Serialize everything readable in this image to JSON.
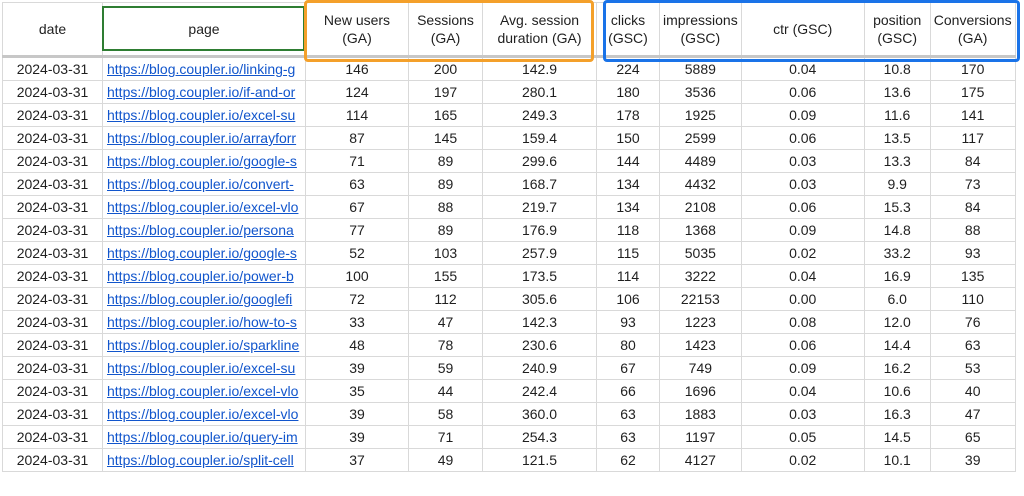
{
  "headers": [
    {
      "key": "date",
      "label": "date"
    },
    {
      "key": "page",
      "label": "page"
    },
    {
      "key": "new_users",
      "label": "New users (GA)"
    },
    {
      "key": "sessions",
      "label": "Sessions (GA)"
    },
    {
      "key": "avg_session",
      "label": "Avg. session duration (GA)"
    },
    {
      "key": "clicks",
      "label": "clicks (GSC)"
    },
    {
      "key": "impressions",
      "label": "impressions (GSC)"
    },
    {
      "key": "ctr",
      "label": "ctr (GSC)"
    },
    {
      "key": "position",
      "label": "position (GSC)"
    },
    {
      "key": "conversions",
      "label": "Conversions (GA)"
    }
  ],
  "rows": [
    [
      "2024-03-31",
      "https://blog.coupler.io/linking-g",
      "146",
      "200",
      "142.9",
      "224",
      "5889",
      "0.04",
      "10.8",
      "170"
    ],
    [
      "2024-03-31",
      "https://blog.coupler.io/if-and-or",
      "124",
      "197",
      "280.1",
      "180",
      "3536",
      "0.06",
      "13.6",
      "175"
    ],
    [
      "2024-03-31",
      "https://blog.coupler.io/excel-su",
      "114",
      "165",
      "249.3",
      "178",
      "1925",
      "0.09",
      "11.6",
      "141"
    ],
    [
      "2024-03-31",
      "https://blog.coupler.io/arrayforr",
      "87",
      "145",
      "159.4",
      "150",
      "2599",
      "0.06",
      "13.5",
      "117"
    ],
    [
      "2024-03-31",
      "https://blog.coupler.io/google-s",
      "71",
      "89",
      "299.6",
      "144",
      "4489",
      "0.03",
      "13.3",
      "84"
    ],
    [
      "2024-03-31",
      "https://blog.coupler.io/convert-",
      "63",
      "89",
      "168.7",
      "134",
      "4432",
      "0.03",
      "9.9",
      "73"
    ],
    [
      "2024-03-31",
      "https://blog.coupler.io/excel-vlo",
      "67",
      "88",
      "219.7",
      "134",
      "2108",
      "0.06",
      "15.3",
      "84"
    ],
    [
      "2024-03-31",
      "https://blog.coupler.io/persona",
      "77",
      "89",
      "176.9",
      "118",
      "1368",
      "0.09",
      "14.8",
      "88"
    ],
    [
      "2024-03-31",
      "https://blog.coupler.io/google-s",
      "52",
      "103",
      "257.9",
      "115",
      "5035",
      "0.02",
      "33.2",
      "93"
    ],
    [
      "2024-03-31",
      "https://blog.coupler.io/power-b",
      "100",
      "155",
      "173.5",
      "114",
      "3222",
      "0.04",
      "16.9",
      "135"
    ],
    [
      "2024-03-31",
      "https://blog.coupler.io/googlefi",
      "72",
      "112",
      "305.6",
      "106",
      "22153",
      "0.00",
      "6.0",
      "110"
    ],
    [
      "2024-03-31",
      "https://blog.coupler.io/how-to-s",
      "33",
      "47",
      "142.3",
      "93",
      "1223",
      "0.08",
      "12.0",
      "76"
    ],
    [
      "2024-03-31",
      "https://blog.coupler.io/sparkline",
      "48",
      "78",
      "230.6",
      "80",
      "1423",
      "0.06",
      "14.4",
      "63"
    ],
    [
      "2024-03-31",
      "https://blog.coupler.io/excel-su",
      "39",
      "59",
      "240.9",
      "67",
      "749",
      "0.09",
      "16.2",
      "53"
    ],
    [
      "2024-03-31",
      "https://blog.coupler.io/excel-vlo",
      "35",
      "44",
      "242.4",
      "66",
      "1696",
      "0.04",
      "10.6",
      "40"
    ],
    [
      "2024-03-31",
      "https://blog.coupler.io/excel-vlo",
      "39",
      "58",
      "360.0",
      "63",
      "1883",
      "0.03",
      "16.3",
      "47"
    ],
    [
      "2024-03-31",
      "https://blog.coupler.io/query-im",
      "39",
      "71",
      "254.3",
      "63",
      "1197",
      "0.05",
      "14.5",
      "65"
    ],
    [
      "2024-03-31",
      "https://blog.coupler.io/split-cell",
      "37",
      "49",
      "121.5",
      "62",
      "4127",
      "0.02",
      "10.1",
      "39"
    ]
  ],
  "colors": {
    "ga_group_frame": "#f4a02a",
    "gsc_group_frame": "#1a73e8",
    "selected_cell_frame": "#2e7d32",
    "link": "#1155cc",
    "grid": "#d9d9d9"
  }
}
